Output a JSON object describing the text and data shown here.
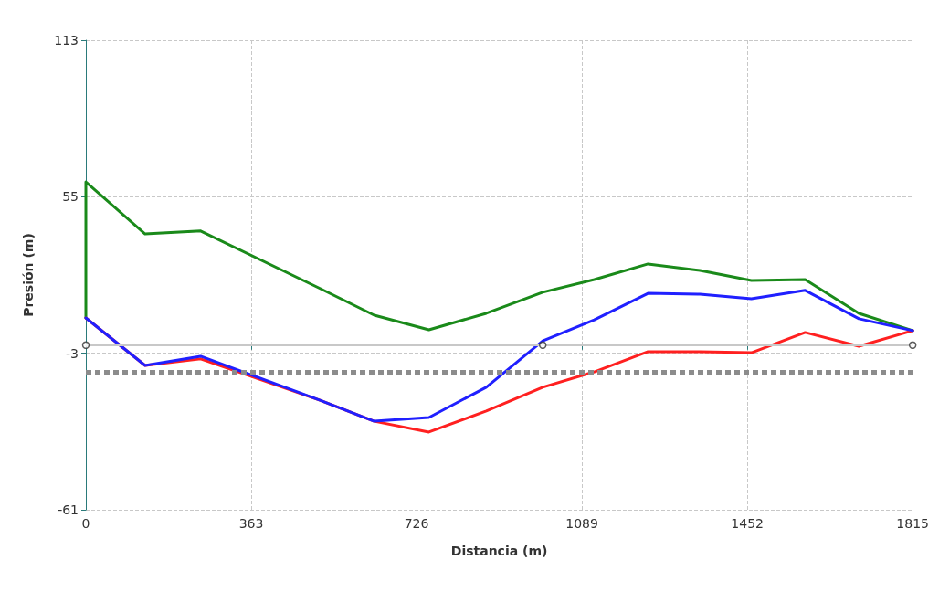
{
  "chart_data": {
    "type": "line",
    "xlabel": "Distancia (m)",
    "ylabel": "Presión (m)",
    "x": [
      0,
      130,
      252,
      514,
      633,
      753,
      879,
      1003,
      1116,
      1234,
      1348,
      1461,
      1579,
      1697,
      1815
    ],
    "series": [
      {
        "color": "#1a8a1a",
        "x": [
          0,
          0,
          130,
          252,
          514,
          633,
          753,
          879,
          1003,
          1116,
          1234,
          1348,
          1461,
          1579,
          1697,
          1815
        ],
        "values": [
          10.1,
          60.5,
          41.2,
          42.3,
          21,
          11.1,
          5.7,
          11.8,
          19.6,
          24.3,
          30.1,
          27.7,
          24.0,
          24.3,
          11.8,
          5.4
        ]
      },
      {
        "color": "#ff2020",
        "values": [
          10.1,
          -7.5,
          -5.1,
          -20.4,
          -28.2,
          -32.2,
          -24.4,
          -15.6,
          -9.9,
          -2.4,
          -2.4,
          -2.8,
          4.7,
          -0.4,
          5.4
        ]
      },
      {
        "color": "#2020ff",
        "values": [
          10.1,
          -7.5,
          -4.1,
          -20.4,
          -28.2,
          -26.8,
          -15.6,
          1.6,
          9.4,
          19.2,
          18.9,
          17.2,
          20.3,
          9.8,
          5.4
        ]
      },
      {
        "type": "scatter",
        "color": "#333333",
        "x": [
          0,
          1003,
          1815
        ],
        "values": [
          0,
          0,
          0
        ]
      }
    ],
    "xlim": [
      0,
      1815
    ],
    "xticks": [
      0,
      363,
      726,
      1089,
      1452,
      1815
    ],
    "ylim": [
      -61,
      113
    ],
    "yticks": [
      -61,
      -3,
      55,
      113
    ],
    "ref_lines": [
      {
        "axis": "y",
        "value": 0,
        "color": "#c8c8c8",
        "line_style": "solid"
      },
      {
        "axis": "y",
        "value": -10,
        "color": "#8c8c8c",
        "line_style": "dotted"
      }
    ],
    "grid": true,
    "marker": "none",
    "line_style": "solid"
  }
}
